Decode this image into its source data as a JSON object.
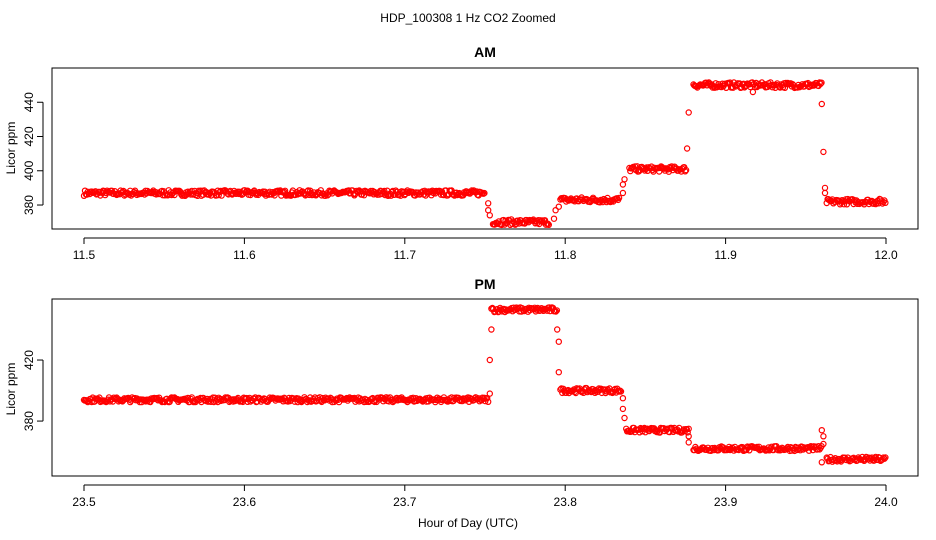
{
  "title": "HDP_100308  1 Hz CO2 Zoomed",
  "xlabel": "Hour of Day (UTC)",
  "chart_data": [
    {
      "type": "scatter",
      "title": "AM",
      "ylabel": "Licor ppm",
      "xlim": [
        11.5,
        12.0
      ],
      "ylim": [
        366,
        460
      ],
      "xticks": [
        "11.5",
        "11.6",
        "11.7",
        "11.8",
        "11.9",
        "12.0"
      ],
      "yticks": [
        "380",
        "400",
        "420",
        "440"
      ],
      "marker_color": "#ff0000",
      "levels": [
        {
          "x": [
            11.5,
            11.75
          ],
          "y": 387
        },
        {
          "x": [
            11.755,
            11.79
          ],
          "y": 370
        },
        {
          "x": [
            11.797,
            11.834
          ],
          "y": 383
        },
        {
          "x": [
            11.84,
            11.876
          ],
          "y": 401
        },
        {
          "x": [
            11.88,
            11.96
          ],
          "y": 450
        },
        {
          "x": [
            11.963,
            12.0
          ],
          "y": 382
        }
      ],
      "transition_points": [
        {
          "x": 11.752,
          "y": 381
        },
        {
          "x": 11.752,
          "y": 377
        },
        {
          "x": 11.753,
          "y": 374
        },
        {
          "x": 11.793,
          "y": 372
        },
        {
          "x": 11.794,
          "y": 377
        },
        {
          "x": 11.796,
          "y": 379
        },
        {
          "x": 11.836,
          "y": 387
        },
        {
          "x": 11.836,
          "y": 392
        },
        {
          "x": 11.837,
          "y": 395
        },
        {
          "x": 11.876,
          "y": 413
        },
        {
          "x": 11.877,
          "y": 434
        },
        {
          "x": 11.917,
          "y": 446
        },
        {
          "x": 11.96,
          "y": 439
        },
        {
          "x": 11.961,
          "y": 411
        },
        {
          "x": 11.962,
          "y": 390
        },
        {
          "x": 11.962,
          "y": 387
        }
      ]
    },
    {
      "type": "scatter",
      "title": "PM",
      "ylabel": "Licor ppm",
      "xlim": [
        23.5,
        24.0
      ],
      "ylim": [
        344,
        460
      ],
      "xticks": [
        "23.5",
        "23.6",
        "23.7",
        "23.8",
        "23.9",
        "24.0"
      ],
      "yticks": [
        "380",
        "420"
      ],
      "marker_color": "#ff0000",
      "levels": [
        {
          "x": [
            23.5,
            23.752
          ],
          "y": 394
        },
        {
          "x": [
            23.754,
            23.795
          ],
          "y": 453
        },
        {
          "x": [
            23.797,
            23.835
          ],
          "y": 400
        },
        {
          "x": [
            23.838,
            23.877
          ],
          "y": 374
        },
        {
          "x": [
            23.88,
            23.96
          ],
          "y": 362
        },
        {
          "x": [
            23.963,
            24.0
          ],
          "y": 355
        }
      ],
      "transition_points": [
        {
          "x": 23.753,
          "y": 398
        },
        {
          "x": 23.753,
          "y": 420
        },
        {
          "x": 23.754,
          "y": 440
        },
        {
          "x": 23.795,
          "y": 440
        },
        {
          "x": 23.796,
          "y": 432
        },
        {
          "x": 23.796,
          "y": 412
        },
        {
          "x": 23.836,
          "y": 395
        },
        {
          "x": 23.836,
          "y": 388
        },
        {
          "x": 23.837,
          "y": 382
        },
        {
          "x": 23.877,
          "y": 370
        },
        {
          "x": 23.877,
          "y": 366
        },
        {
          "x": 23.96,
          "y": 374
        },
        {
          "x": 23.961,
          "y": 370
        },
        {
          "x": 23.961,
          "y": 365
        },
        {
          "x": 23.96,
          "y": 353
        }
      ]
    }
  ]
}
